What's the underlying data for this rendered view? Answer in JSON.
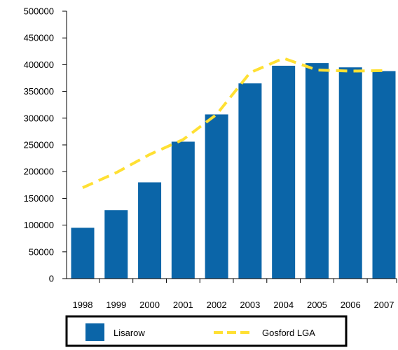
{
  "chart_data": {
    "type": "bar",
    "categories": [
      "1998",
      "1999",
      "2000",
      "2001",
      "2002",
      "2003",
      "2004",
      "2005",
      "2006",
      "2007"
    ],
    "series": [
      {
        "name": "Lisarow",
        "type": "bar",
        "color": "#0b65a8",
        "values": [
          95000,
          128000,
          180000,
          256000,
          307000,
          365000,
          398000,
          403000,
          395000,
          388000
        ]
      },
      {
        "name": "Gosford LGA",
        "type": "line",
        "style": "dashed",
        "color": "#ffe033",
        "values": [
          170000,
          198000,
          232000,
          260000,
          307000,
          385000,
          412000,
          390000,
          388000,
          389000
        ]
      }
    ],
    "y_ticks": [
      "500000",
      "450000",
      "400000",
      "350000",
      "300000",
      "250000",
      "200000",
      "150000",
      "100000",
      "50000",
      "0"
    ],
    "ylim": [
      0,
      500000
    ],
    "grid": false,
    "legend_position": "bottom"
  }
}
